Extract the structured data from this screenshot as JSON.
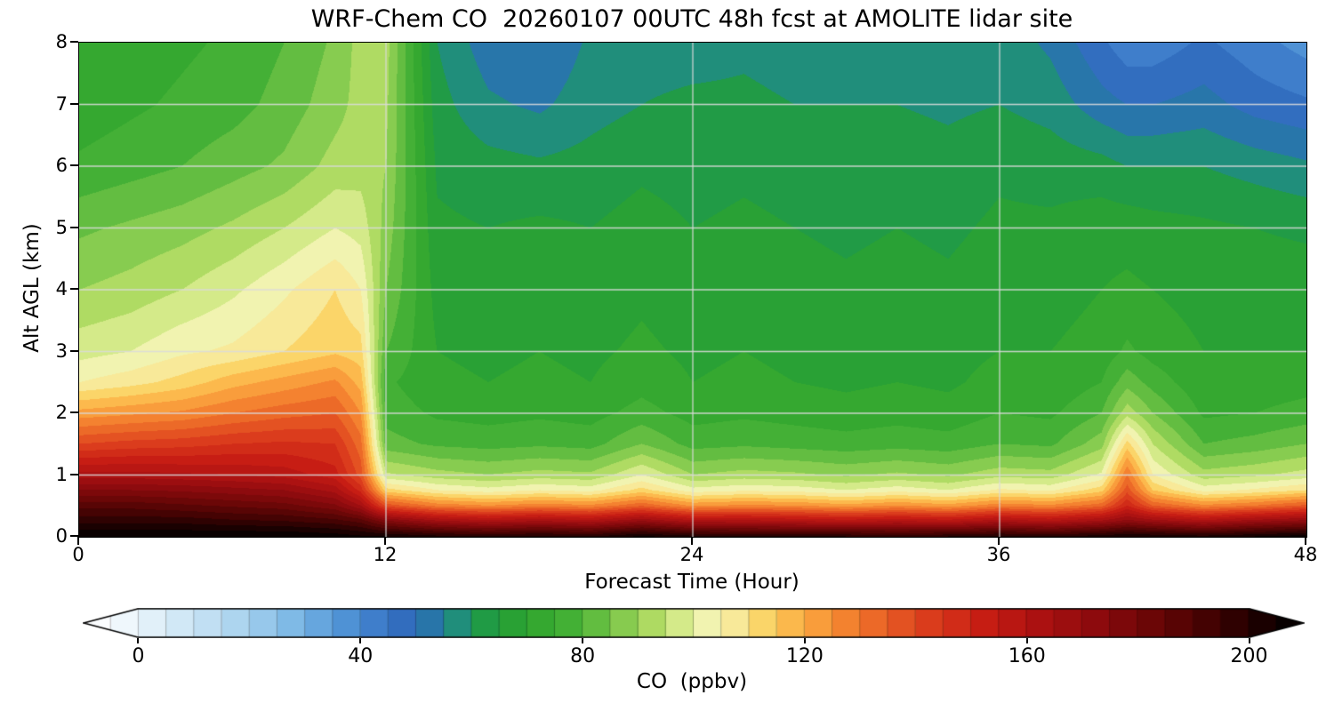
{
  "chart_data": {
    "type": "heatmap",
    "title": "WRF-Chem CO  20260107 00UTC 48h fcst at AMOLITE lidar site",
    "xlabel": "Forecast Time (Hour)",
    "ylabel": "Alt AGL (km)",
    "xlim": [
      0,
      48
    ],
    "ylim": [
      0,
      8
    ],
    "xticks": [
      0,
      12,
      24,
      36,
      48
    ],
    "yticks": [
      0,
      1,
      2,
      3,
      4,
      5,
      6,
      7,
      8
    ],
    "grid_x": [
      12,
      24,
      36
    ],
    "grid_y": [
      1,
      2,
      3,
      4,
      5,
      6,
      7
    ],
    "x_hours": [
      0,
      2,
      4,
      6,
      8,
      10,
      11,
      12,
      14,
      16,
      18,
      20,
      22,
      24,
      26,
      28,
      30,
      32,
      34,
      36,
      38,
      40,
      41,
      42,
      44,
      46,
      48
    ],
    "y_km": [
      0,
      0.25,
      0.5,
      0.75,
      1,
      1.5,
      2,
      2.5,
      3,
      4,
      5,
      6,
      7,
      8
    ],
    "values_ppbv": [
      [
        210,
        210,
        210,
        210,
        210,
        208,
        206,
        205,
        202,
        200,
        202,
        200,
        206,
        202,
        200,
        200,
        200,
        198,
        200,
        202,
        200,
        203,
        205,
        204,
        202,
        205,
        208
      ],
      [
        198,
        198,
        198,
        196,
        195,
        192,
        188,
        176,
        166,
        162,
        165,
        162,
        170,
        162,
        162,
        160,
        158,
        160,
        158,
        163,
        160,
        166,
        172,
        168,
        162,
        168,
        172
      ],
      [
        188,
        188,
        186,
        184,
        182,
        176,
        165,
        138,
        128,
        125,
        128,
        126,
        134,
        124,
        126,
        125,
        122,
        125,
        122,
        128,
        126,
        133,
        150,
        135,
        126,
        130,
        136
      ],
      [
        175,
        175,
        174,
        172,
        170,
        163,
        148,
        112,
        105,
        102,
        105,
        103,
        112,
        102,
        104,
        103,
        100,
        103,
        100,
        106,
        104,
        113,
        138,
        115,
        103,
        106,
        110
      ],
      [
        162,
        162,
        161,
        160,
        158,
        152,
        138,
        96,
        92,
        90,
        92,
        91,
        100,
        90,
        92,
        91,
        89,
        91,
        89,
        93,
        92,
        101,
        130,
        105,
        92,
        94,
        97
      ],
      [
        140,
        142,
        143,
        145,
        146,
        145,
        132,
        82,
        79,
        78,
        79,
        78,
        85,
        78,
        79,
        78,
        77,
        78,
        77,
        80,
        79,
        88,
        112,
        95,
        80,
        82,
        85
      ],
      [
        122,
        124,
        126,
        130,
        133,
        135,
        125,
        78,
        74,
        73,
        74,
        73,
        77,
        73,
        74,
        73,
        72,
        73,
        72,
        75,
        74,
        80,
        93,
        85,
        74,
        75,
        77
      ],
      [
        105,
        108,
        112,
        118,
        122,
        126,
        118,
        76,
        71,
        70,
        71,
        70,
        73,
        70,
        71,
        70,
        69,
        70,
        69,
        72,
        71,
        75,
        83,
        78,
        71,
        72,
        73
      ],
      [
        98,
        100,
        104,
        106,
        110,
        114,
        112,
        80,
        70,
        69,
        70,
        69,
        71,
        69,
        70,
        69,
        68,
        69,
        68,
        70,
        70,
        72,
        76,
        73,
        70,
        70,
        70
      ],
      [
        90,
        92,
        95,
        99,
        104,
        110,
        105,
        85,
        68,
        67,
        68,
        67,
        69,
        67,
        68,
        67,
        66,
        67,
        66,
        68,
        68,
        70,
        71,
        70,
        68,
        68,
        68
      ],
      [
        84,
        86,
        88,
        91,
        95,
        100,
        98,
        88,
        66,
        65,
        66,
        65,
        67,
        65,
        66,
        65,
        64,
        65,
        64,
        66,
        66,
        68,
        68,
        67,
        66,
        65,
        64
      ],
      [
        76,
        78,
        80,
        83,
        86,
        92,
        93,
        90,
        64,
        62,
        61,
        62,
        64,
        63,
        64,
        63,
        62,
        63,
        62,
        64,
        63,
        62,
        60,
        60,
        60,
        58,
        56
      ],
      [
        72,
        74,
        76,
        78,
        82,
        88,
        92,
        91,
        62,
        56,
        54,
        58,
        60,
        61,
        61,
        60,
        60,
        60,
        59,
        60,
        58,
        52,
        50,
        50,
        52,
        48,
        46
      ],
      [
        70,
        72,
        74,
        76,
        80,
        86,
        92,
        92,
        60,
        52,
        50,
        56,
        58,
        58,
        59,
        58,
        58,
        58,
        57,
        58,
        54,
        46,
        42,
        42,
        46,
        42,
        38
      ]
    ],
    "colorbar": {
      "label": "CO  (ppbv)",
      "ticks": [
        0,
        40,
        80,
        120,
        160,
        200
      ],
      "range": [
        -10,
        210
      ],
      "level_step": 5,
      "extend": "both"
    },
    "colormap": [
      [
        -10,
        "#ffffff"
      ],
      [
        -4,
        "#f4fafd"
      ],
      [
        4,
        "#ddeef9"
      ],
      [
        12,
        "#c3e1f4"
      ],
      [
        20,
        "#a3d0ee"
      ],
      [
        28,
        "#7db9e6"
      ],
      [
        36,
        "#5598d8"
      ],
      [
        44,
        "#3a78c8"
      ],
      [
        50,
        "#2d66b8"
      ],
      [
        55,
        "#23859b"
      ],
      [
        59,
        "#1f9468"
      ],
      [
        63,
        "#219c41"
      ],
      [
        70,
        "#2ea42e"
      ],
      [
        78,
        "#45b136"
      ],
      [
        85,
        "#73c447"
      ],
      [
        92,
        "#abd95f"
      ],
      [
        98,
        "#d8ec8d"
      ],
      [
        103,
        "#f4f4b4"
      ],
      [
        108,
        "#f9e896"
      ],
      [
        113,
        "#fbd364"
      ],
      [
        119,
        "#fcb045"
      ],
      [
        126,
        "#f68a32"
      ],
      [
        134,
        "#ea6226"
      ],
      [
        143,
        "#da3a1c"
      ],
      [
        152,
        "#c81e14"
      ],
      [
        162,
        "#ad1212"
      ],
      [
        172,
        "#8f0b0e"
      ],
      [
        182,
        "#6d0707"
      ],
      [
        192,
        "#470303"
      ],
      [
        202,
        "#1c0101"
      ],
      [
        210,
        "#000000"
      ]
    ]
  }
}
